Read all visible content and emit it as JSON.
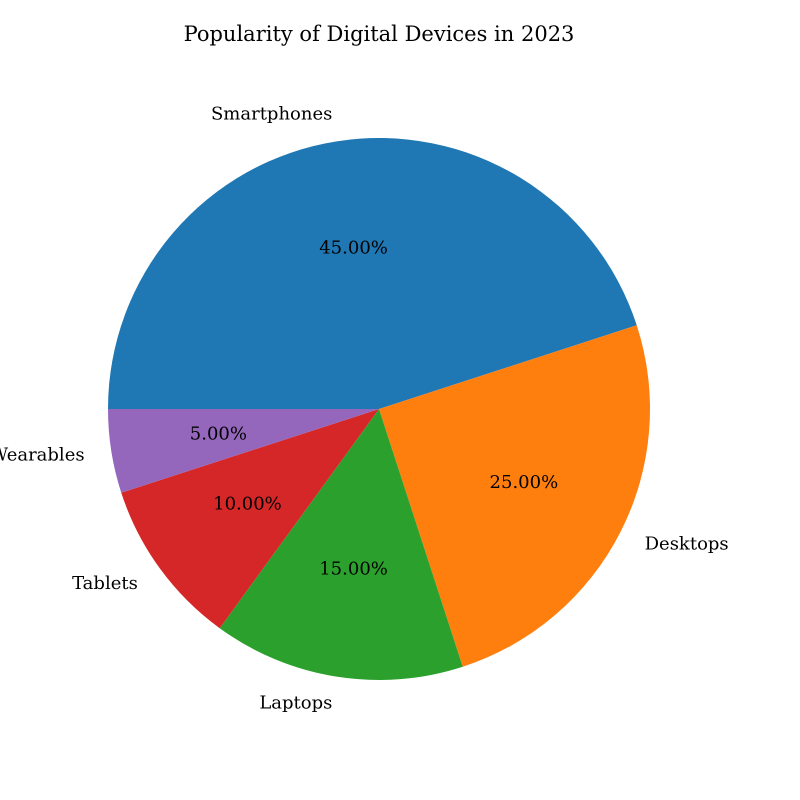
{
  "chart_data": {
    "type": "pie",
    "title": "Popularity of Digital Devices in 2023",
    "categories": [
      "Smartphones",
      "Desktops",
      "Laptops",
      "Tablets",
      "Wearables"
    ],
    "values": [
      45,
      25,
      15,
      10,
      5
    ],
    "percent_labels": [
      "45.00%",
      "25.00%",
      "15.00%",
      "10.00%",
      "5.00%"
    ],
    "colors": [
      "#1f77b4",
      "#ff7f0e",
      "#2ca02c",
      "#d62728",
      "#9467bd"
    ],
    "start_angle_deg": 180,
    "direction": "clockwise",
    "legend": "none"
  }
}
